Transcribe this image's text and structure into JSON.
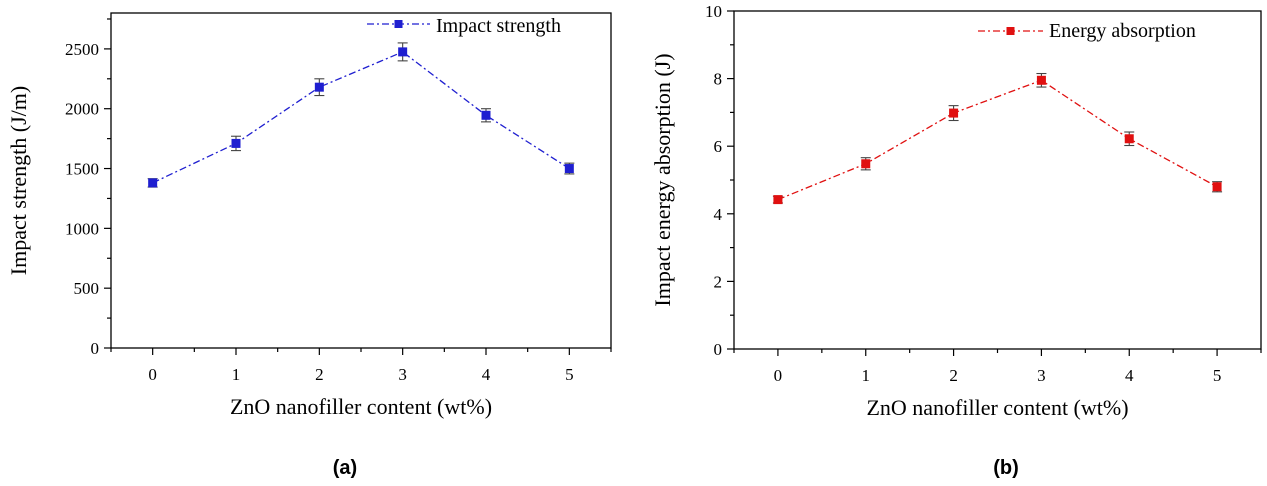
{
  "chart_data": [
    {
      "type": "line",
      "caption": "(a)",
      "x": [
        0,
        1,
        2,
        3,
        4,
        5
      ],
      "series": [
        {
          "name": "Impact strength",
          "values": [
            1380,
            1710,
            2180,
            2475,
            1945,
            1500
          ],
          "errors": [
            35,
            60,
            70,
            75,
            55,
            45
          ],
          "color": "#1f1fd0"
        }
      ],
      "xlabel": "ZnO nanofiller content (wt%)",
      "ylabel": "Impact strength (J/m)",
      "xlim": [
        -0.5,
        5.5
      ],
      "ylim": [
        0,
        2800
      ],
      "xticks": [
        "0",
        "1",
        "2",
        "3",
        "4",
        "5"
      ],
      "yticks": [
        "0",
        "500",
        "1000",
        "1500",
        "2000",
        "2500"
      ],
      "legend_position": "top-right",
      "grid": false
    },
    {
      "type": "line",
      "caption": "(b)",
      "x": [
        0,
        1,
        2,
        3,
        4,
        5
      ],
      "series": [
        {
          "name": "Energy absorption",
          "values": [
            4.42,
            5.48,
            6.98,
            7.95,
            6.22,
            4.8
          ],
          "errors": [
            0.1,
            0.18,
            0.22,
            0.2,
            0.2,
            0.15
          ],
          "color": "#e01010"
        }
      ],
      "xlabel": "ZnO nanofiller content (wt%)",
      "ylabel": "Impact energy absorption (J)",
      "xlim": [
        -0.5,
        5.5
      ],
      "ylim": [
        0,
        10
      ],
      "xticks": [
        "0",
        "1",
        "2",
        "3",
        "4",
        "5"
      ],
      "yticks": [
        "0",
        "2",
        "4",
        "6",
        "8",
        "10"
      ],
      "legend_position": "top-right",
      "grid": false
    }
  ]
}
